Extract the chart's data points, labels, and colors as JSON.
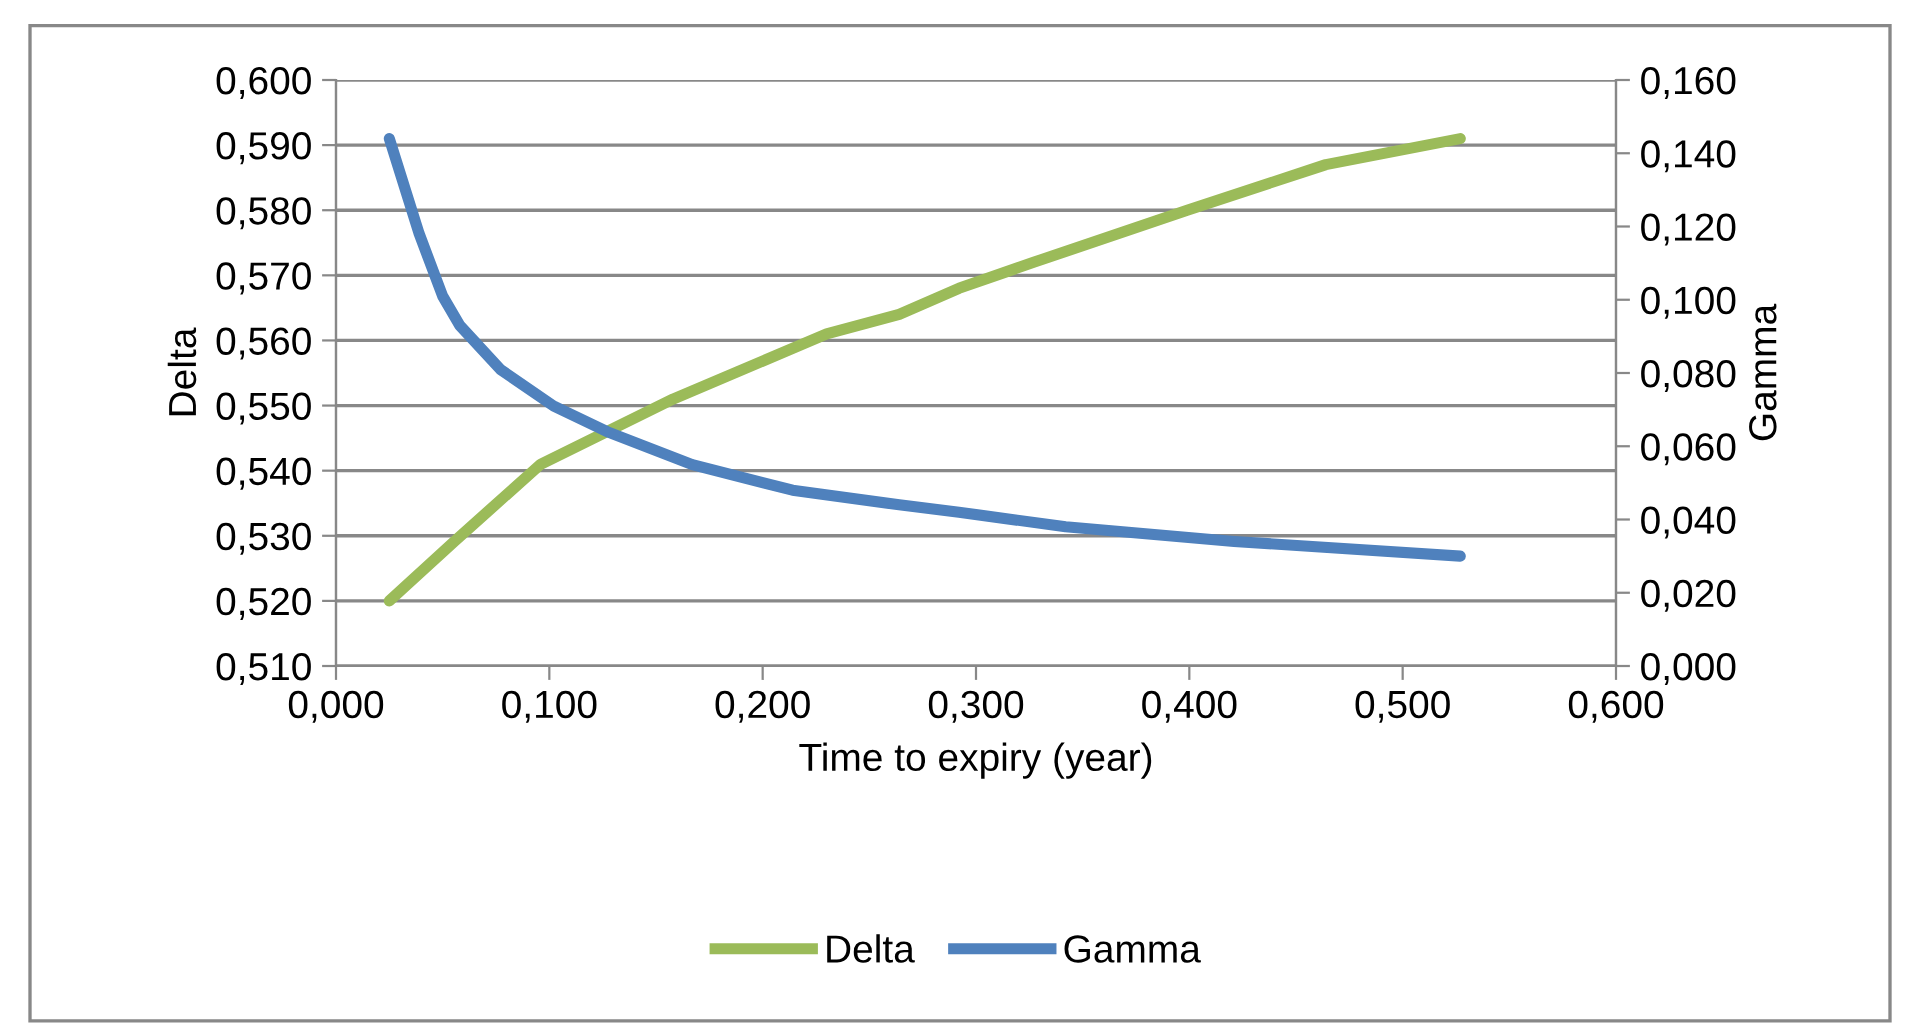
{
  "chart_data": {
    "type": "line",
    "xlabel": "Time to expiry (year)",
    "ylabel": "Delta",
    "y2label": "Gamma",
    "xlim": [
      0.0,
      0.6
    ],
    "xticks": [
      {
        "value": 0.0,
        "label": "0,000"
      },
      {
        "value": 0.1,
        "label": "0,100"
      },
      {
        "value": 0.2,
        "label": "0,200"
      },
      {
        "value": 0.3,
        "label": "0,300"
      },
      {
        "value": 0.4,
        "label": "0,400"
      },
      {
        "value": 0.5,
        "label": "0,500"
      },
      {
        "value": 0.6,
        "label": "0,600"
      }
    ],
    "ylim": [
      0.51,
      0.6
    ],
    "yticks": [
      {
        "value": 0.51,
        "label": "0,510"
      },
      {
        "value": 0.52,
        "label": "0,520"
      },
      {
        "value": 0.53,
        "label": "0,530"
      },
      {
        "value": 0.54,
        "label": "0,540"
      },
      {
        "value": 0.55,
        "label": "0,550"
      },
      {
        "value": 0.56,
        "label": "0,560"
      },
      {
        "value": 0.57,
        "label": "0,570"
      },
      {
        "value": 0.58,
        "label": "0,580"
      },
      {
        "value": 0.59,
        "label": "0,590"
      },
      {
        "value": 0.6,
        "label": "0,600"
      }
    ],
    "y2lim": [
      0.0,
      0.16
    ],
    "y2ticks": [
      {
        "value": 0.0,
        "label": "0,000"
      },
      {
        "value": 0.02,
        "label": "0,020"
      },
      {
        "value": 0.04,
        "label": "0,040"
      },
      {
        "value": 0.06,
        "label": "0,060"
      },
      {
        "value": 0.08,
        "label": "0,080"
      },
      {
        "value": 0.1,
        "label": "0,100"
      },
      {
        "value": 0.12,
        "label": "0,120"
      },
      {
        "value": 0.14,
        "label": "0,140"
      },
      {
        "value": 0.16,
        "label": "0,160"
      }
    ],
    "grid": "y",
    "legend": "bottom",
    "marker": "none",
    "line_style": "solid",
    "series": [
      {
        "name": "Delta",
        "color": "#9bbb59",
        "x": [
          0.025,
          0.055,
          0.096,
          0.158,
          0.23,
          0.264,
          0.292,
          0.327,
          0.399,
          0.464,
          0.527
        ],
        "values": [
          0.52,
          0.529,
          0.541,
          0.551,
          0.561,
          0.564,
          0.568,
          0.572,
          0.58,
          0.587,
          0.591
        ]
      },
      {
        "name": "Gamma",
        "color": "#4f81bd",
        "axis": "y2",
        "x": [
          0.025,
          0.039,
          0.05,
          0.058,
          0.077,
          0.102,
          0.127,
          0.167,
          0.214,
          0.264,
          0.292,
          0.342,
          0.421,
          0.527
        ],
        "values": [
          0.144,
          0.118,
          0.101,
          0.093,
          0.081,
          0.071,
          0.064,
          0.055,
          0.048,
          0.044,
          0.042,
          0.038,
          0.034,
          0.03
        ]
      }
    ]
  }
}
